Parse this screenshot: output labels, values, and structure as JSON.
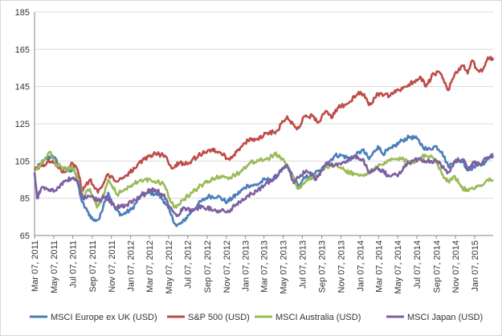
{
  "chart_data": {
    "type": "line",
    "title": "",
    "xlabel": "",
    "ylabel": "",
    "ylim": [
      65,
      185
    ],
    "y_ticks": [
      65,
      85,
      105,
      125,
      145,
      165,
      185
    ],
    "x_range": [
      "2011-03-07",
      "2015-03-07"
    ],
    "x_ticks": [
      "Mar 07, 2011",
      "May 07, 2011",
      "Jul 07, 2011",
      "Sep 07, 2011",
      "Nov 07, 2011",
      "Jan 07, 2012",
      "Mar 07, 2012",
      "May 07, 2012",
      "Jul 07, 2012",
      "Sep 07, 2012",
      "Nov 07, 2012",
      "Jan 07, 2013",
      "Mar 07, 2013",
      "May 07, 2013",
      "Jul 07, 2013",
      "Sep 07, 2013",
      "Nov 07, 2013",
      "Jan 07, 2014",
      "Mar 07, 2014",
      "May 07, 2014",
      "Jul 07, 2014",
      "Sep 07, 2014",
      "Nov 07, 2014",
      "Jan 07, 2015"
    ],
    "grid": "horizontal",
    "legend_position": "bottom",
    "series": [
      {
        "name": "MSCI Europe ex UK (USD)",
        "color": "#4a7ebb",
        "points": [
          [
            "2011-03-07",
            100
          ],
          [
            "2011-04-05",
            105
          ],
          [
            "2011-05-03",
            108
          ],
          [
            "2011-06-01",
            101
          ],
          [
            "2011-06-29",
            100
          ],
          [
            "2011-07-10",
            101
          ],
          [
            "2011-07-20",
            95
          ],
          [
            "2011-08-05",
            83
          ],
          [
            "2011-08-22",
            78
          ],
          [
            "2011-09-12",
            73
          ],
          [
            "2011-09-30",
            74
          ],
          [
            "2011-10-15",
            83
          ],
          [
            "2011-10-28",
            88
          ],
          [
            "2011-11-20",
            79
          ],
          [
            "2011-12-10",
            76
          ],
          [
            "2012-01-10",
            79
          ],
          [
            "2012-02-08",
            86
          ],
          [
            "2012-03-10",
            88
          ],
          [
            "2012-04-05",
            87
          ],
          [
            "2012-04-25",
            83
          ],
          [
            "2012-05-15",
            76
          ],
          [
            "2012-06-01",
            70
          ],
          [
            "2012-06-20",
            72
          ],
          [
            "2012-07-10",
            76
          ],
          [
            "2012-08-10",
            82
          ],
          [
            "2012-09-10",
            86
          ],
          [
            "2012-10-10",
            86
          ],
          [
            "2012-11-10",
            83
          ],
          [
            "2012-12-10",
            87
          ],
          [
            "2013-01-15",
            92
          ],
          [
            "2013-02-10",
            92
          ],
          [
            "2013-03-10",
            95
          ],
          [
            "2013-04-05",
            95
          ],
          [
            "2013-04-25",
            99
          ],
          [
            "2013-05-20",
            102
          ],
          [
            "2013-06-10",
            96
          ],
          [
            "2013-06-25",
            91
          ],
          [
            "2013-07-15",
            96
          ],
          [
            "2013-08-10",
            98
          ],
          [
            "2013-09-05",
            100
          ],
          [
            "2013-09-25",
            104
          ],
          [
            "2013-10-20",
            108
          ],
          [
            "2013-11-10",
            108
          ],
          [
            "2013-12-10",
            106
          ],
          [
            "2014-01-15",
            111
          ],
          [
            "2014-02-05",
            106
          ],
          [
            "2014-03-05",
            113
          ],
          [
            "2014-03-20",
            109
          ],
          [
            "2014-04-20",
            112
          ],
          [
            "2014-05-20",
            116
          ],
          [
            "2014-06-15",
            118
          ],
          [
            "2014-07-07",
            117
          ],
          [
            "2014-07-25",
            113
          ],
          [
            "2014-08-10",
            111
          ],
          [
            "2014-09-05",
            113
          ],
          [
            "2014-09-25",
            110
          ],
          [
            "2014-10-15",
            102
          ],
          [
            "2014-11-05",
            105
          ],
          [
            "2014-12-01",
            105
          ],
          [
            "2014-12-15",
            100
          ],
          [
            "2015-01-05",
            102
          ],
          [
            "2015-01-20",
            104
          ],
          [
            "2015-02-05",
            103
          ],
          [
            "2015-02-20",
            107
          ],
          [
            "2015-03-07",
            109
          ]
        ]
      },
      {
        "name": "S&P 500 (USD)",
        "color": "#be4b48",
        "points": [
          [
            "2011-03-07",
            100
          ],
          [
            "2011-04-15",
            104
          ],
          [
            "2011-05-03",
            105
          ],
          [
            "2011-06-10",
            99
          ],
          [
            "2011-07-05",
            104
          ],
          [
            "2011-07-20",
            101
          ],
          [
            "2011-08-08",
            89
          ],
          [
            "2011-08-30",
            95
          ],
          [
            "2011-09-25",
            88
          ],
          [
            "2011-10-10",
            92
          ],
          [
            "2011-10-28",
            98
          ],
          [
            "2011-11-25",
            94
          ],
          [
            "2011-12-20",
            97
          ],
          [
            "2012-01-20",
            101
          ],
          [
            "2012-02-20",
            106
          ],
          [
            "2012-03-20",
            109
          ],
          [
            "2012-04-25",
            108
          ],
          [
            "2012-05-20",
            101
          ],
          [
            "2012-06-10",
            104
          ],
          [
            "2012-07-10",
            104
          ],
          [
            "2012-08-10",
            108
          ],
          [
            "2012-09-14",
            111
          ],
          [
            "2012-10-15",
            110
          ],
          [
            "2012-11-15",
            106
          ],
          [
            "2012-12-10",
            110
          ],
          [
            "2013-01-15",
            116
          ],
          [
            "2013-02-15",
            117
          ],
          [
            "2013-03-15",
            120
          ],
          [
            "2013-04-15",
            121
          ],
          [
            "2013-05-20",
            129
          ],
          [
            "2013-06-20",
            122
          ],
          [
            "2013-07-15",
            129
          ],
          [
            "2013-08-10",
            129
          ],
          [
            "2013-08-28",
            126
          ],
          [
            "2013-09-20",
            132
          ],
          [
            "2013-10-08",
            128
          ],
          [
            "2013-10-30",
            134
          ],
          [
            "2013-11-30",
            136
          ],
          [
            "2013-12-30",
            141
          ],
          [
            "2014-01-20",
            141
          ],
          [
            "2014-02-04",
            135
          ],
          [
            "2014-03-05",
            141
          ],
          [
            "2014-04-10",
            140
          ],
          [
            "2014-05-10",
            143
          ],
          [
            "2014-06-10",
            146
          ],
          [
            "2014-07-20",
            150
          ],
          [
            "2014-08-05",
            145
          ],
          [
            "2014-08-30",
            152
          ],
          [
            "2014-09-20",
            152
          ],
          [
            "2014-10-15",
            143
          ],
          [
            "2014-11-05",
            152
          ],
          [
            "2014-12-01",
            156
          ],
          [
            "2014-12-16",
            152
          ],
          [
            "2014-12-30",
            159
          ],
          [
            "2015-01-15",
            154
          ],
          [
            "2015-01-30",
            153
          ],
          [
            "2015-02-15",
            159
          ],
          [
            "2015-02-27",
            161
          ],
          [
            "2015-03-07",
            159
          ]
        ]
      },
      {
        "name": "MSCI Australia (USD)",
        "color": "#9bbb59",
        "points": [
          [
            "2011-03-07",
            100
          ],
          [
            "2011-04-05",
            105
          ],
          [
            "2011-04-25",
            110
          ],
          [
            "2011-05-10",
            104
          ],
          [
            "2011-06-15",
            100
          ],
          [
            "2011-07-05",
            102
          ],
          [
            "2011-07-20",
            97
          ],
          [
            "2011-08-08",
            86
          ],
          [
            "2011-08-30",
            90
          ],
          [
            "2011-09-22",
            80
          ],
          [
            "2011-10-10",
            85
          ],
          [
            "2011-10-28",
            95
          ],
          [
            "2011-11-25",
            87
          ],
          [
            "2011-12-20",
            90
          ],
          [
            "2012-01-20",
            93
          ],
          [
            "2012-02-20",
            95
          ],
          [
            "2012-03-20",
            94
          ],
          [
            "2012-04-20",
            93
          ],
          [
            "2012-05-10",
            85
          ],
          [
            "2012-05-25",
            80
          ],
          [
            "2012-06-20",
            84
          ],
          [
            "2012-07-20",
            88
          ],
          [
            "2012-08-20",
            92
          ],
          [
            "2012-09-20",
            95
          ],
          [
            "2012-10-20",
            97
          ],
          [
            "2012-11-20",
            96
          ],
          [
            "2012-12-20",
            99
          ],
          [
            "2013-01-20",
            104
          ],
          [
            "2013-02-20",
            105
          ],
          [
            "2013-03-20",
            106
          ],
          [
            "2013-04-10",
            109
          ],
          [
            "2013-04-25",
            108
          ],
          [
            "2013-05-20",
            102
          ],
          [
            "2013-06-10",
            96
          ],
          [
            "2013-06-25",
            90
          ],
          [
            "2013-07-20",
            95
          ],
          [
            "2013-08-20",
            97
          ],
          [
            "2013-09-20",
            102
          ],
          [
            "2013-10-20",
            103
          ],
          [
            "2013-11-20",
            100
          ],
          [
            "2013-12-20",
            98
          ],
          [
            "2014-01-20",
            97
          ],
          [
            "2014-02-20",
            101
          ],
          [
            "2014-03-20",
            103
          ],
          [
            "2014-04-20",
            106
          ],
          [
            "2014-05-20",
            106
          ],
          [
            "2014-06-20",
            104
          ],
          [
            "2014-07-20",
            107
          ],
          [
            "2014-08-20",
            108
          ],
          [
            "2014-09-10",
            104
          ],
          [
            "2014-09-25",
            98
          ],
          [
            "2014-10-15",
            94
          ],
          [
            "2014-11-05",
            97
          ],
          [
            "2014-11-25",
            91
          ],
          [
            "2014-12-15",
            89
          ],
          [
            "2015-01-05",
            90
          ],
          [
            "2015-01-25",
            92
          ],
          [
            "2015-02-15",
            95
          ],
          [
            "2015-03-07",
            95
          ]
        ]
      },
      {
        "name": "MSCI Japan (USD)",
        "color": "#7d60a0",
        "points": [
          [
            "2011-03-07",
            99
          ],
          [
            "2011-03-15",
            85
          ],
          [
            "2011-03-30",
            91
          ],
          [
            "2011-04-15",
            90
          ],
          [
            "2011-05-10",
            89
          ],
          [
            "2011-06-10",
            94
          ],
          [
            "2011-07-10",
            96
          ],
          [
            "2011-07-25",
            93
          ],
          [
            "2011-08-08",
            85
          ],
          [
            "2011-08-30",
            86
          ],
          [
            "2011-09-25",
            84
          ],
          [
            "2011-10-20",
            86
          ],
          [
            "2011-11-20",
            80
          ],
          [
            "2011-12-20",
            81
          ],
          [
            "2012-01-20",
            84
          ],
          [
            "2012-02-20",
            88
          ],
          [
            "2012-03-20",
            90
          ],
          [
            "2012-04-20",
            87
          ],
          [
            "2012-05-15",
            80
          ],
          [
            "2012-06-05",
            76
          ],
          [
            "2012-06-25",
            80
          ],
          [
            "2012-07-20",
            78
          ],
          [
            "2012-08-20",
            81
          ],
          [
            "2012-09-20",
            79
          ],
          [
            "2012-10-20",
            78
          ],
          [
            "2012-11-15",
            78
          ],
          [
            "2012-12-10",
            82
          ],
          [
            "2013-01-10",
            86
          ],
          [
            "2013-02-10",
            89
          ],
          [
            "2013-03-10",
            92
          ],
          [
            "2013-04-10",
            96
          ],
          [
            "2013-05-20",
            103
          ],
          [
            "2013-06-10",
            93
          ],
          [
            "2013-06-25",
            96
          ],
          [
            "2013-07-20",
            100
          ],
          [
            "2013-08-20",
            95
          ],
          [
            "2013-09-20",
            104
          ],
          [
            "2013-10-20",
            103
          ],
          [
            "2013-11-20",
            104
          ],
          [
            "2013-12-20",
            108
          ],
          [
            "2014-01-15",
            106
          ],
          [
            "2014-02-05",
            99
          ],
          [
            "2014-03-05",
            101
          ],
          [
            "2014-04-10",
            97
          ],
          [
            "2014-05-10",
            98
          ],
          [
            "2014-06-10",
            104
          ],
          [
            "2014-07-10",
            106
          ],
          [
            "2014-08-10",
            105
          ],
          [
            "2014-09-10",
            105
          ],
          [
            "2014-10-15",
            99
          ],
          [
            "2014-11-05",
            105
          ],
          [
            "2014-12-01",
            106
          ],
          [
            "2014-12-16",
            100
          ],
          [
            "2015-01-05",
            104
          ],
          [
            "2015-01-25",
            103
          ],
          [
            "2015-02-15",
            107
          ],
          [
            "2015-03-07",
            108
          ]
        ]
      }
    ]
  }
}
